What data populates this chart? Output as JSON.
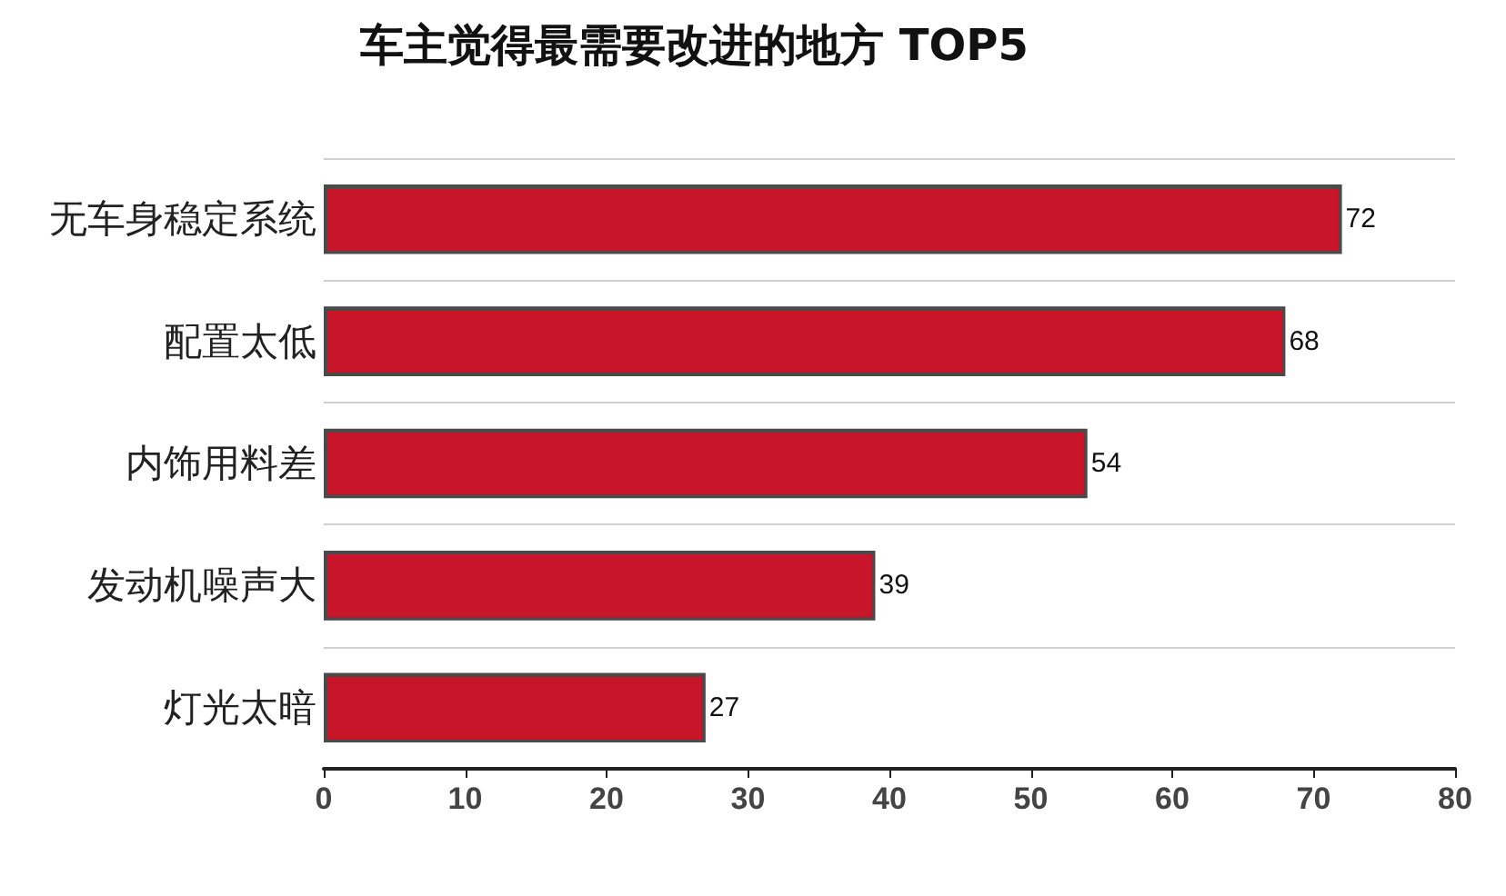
{
  "chart_data": {
    "type": "bar",
    "orientation": "horizontal",
    "title": "车主觉得最需要改进的地方 TOP5",
    "categories": [
      "无车身稳定系统",
      "配置太低",
      "内饰用料差",
      "发动机噪声大",
      "灯光太暗"
    ],
    "values": [
      72,
      68,
      54,
      39,
      27
    ],
    "color": "#c8152a",
    "xlim": [
      0,
      80
    ],
    "xticks": [
      0,
      10,
      20,
      30,
      40,
      50,
      60,
      70,
      80
    ],
    "grid": "y",
    "data_labels": true
  }
}
